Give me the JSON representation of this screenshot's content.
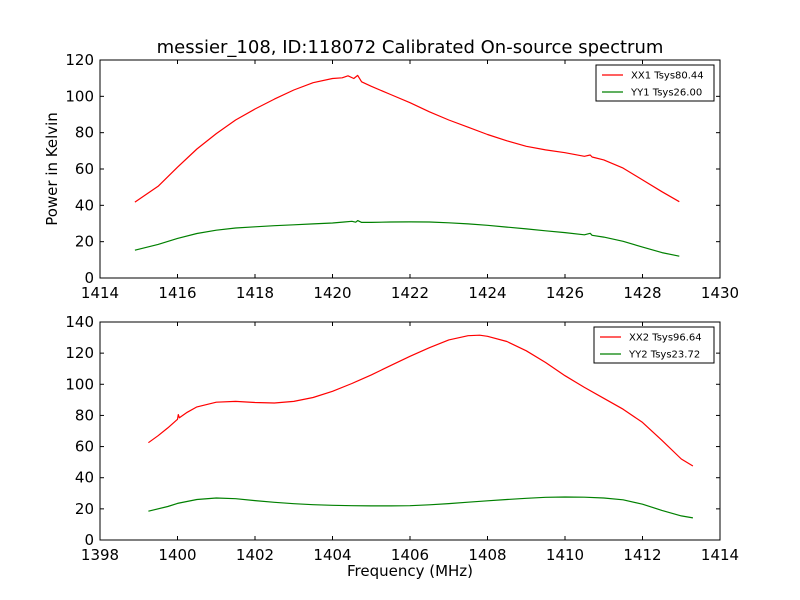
{
  "title": "messier_108, ID:118072 Calibrated On-source spectrum",
  "ylabel": "Power in Kelvin",
  "xlabel": "Frequency (MHz)",
  "colors": {
    "xx": "#ff0000",
    "yy": "#008000"
  },
  "chart_data": [
    {
      "type": "line",
      "xlim": [
        1414,
        1430
      ],
      "ylim": [
        0,
        120
      ],
      "xticks": [
        1414,
        1416,
        1418,
        1420,
        1422,
        1424,
        1426,
        1428,
        1430
      ],
      "yticks": [
        0,
        20,
        40,
        60,
        80,
        100,
        120
      ],
      "legend_position": "top-right",
      "series": [
        {
          "name": "XX1 Tsys80.44",
          "color": "#ff0000",
          "points": [
            [
              1414.9,
              41.8
            ],
            [
              1415.5,
              50.5
            ],
            [
              1416.0,
              61.0
            ],
            [
              1416.5,
              71.0
            ],
            [
              1417.0,
              79.5
            ],
            [
              1417.5,
              87.0
            ],
            [
              1418.0,
              93.0
            ],
            [
              1418.5,
              98.5
            ],
            [
              1419.0,
              103.5
            ],
            [
              1419.5,
              107.5
            ],
            [
              1420.0,
              109.8
            ],
            [
              1420.25,
              110.2
            ],
            [
              1420.4,
              111.3
            ],
            [
              1420.55,
              109.8
            ],
            [
              1420.65,
              111.5
            ],
            [
              1420.75,
              108.0
            ],
            [
              1421.0,
              105.5
            ],
            [
              1421.5,
              101.0
            ],
            [
              1422.0,
              96.5
            ],
            [
              1422.5,
              91.5
            ],
            [
              1423.0,
              87.0
            ],
            [
              1423.5,
              83.0
            ],
            [
              1424.0,
              79.0
            ],
            [
              1424.5,
              75.5
            ],
            [
              1425.0,
              72.5
            ],
            [
              1425.5,
              70.5
            ],
            [
              1426.0,
              69.0
            ],
            [
              1426.5,
              67.0
            ],
            [
              1426.65,
              67.7
            ],
            [
              1426.7,
              66.6
            ],
            [
              1427.0,
              65.0
            ],
            [
              1427.5,
              60.5
            ],
            [
              1428.0,
              54.0
            ],
            [
              1428.5,
              47.5
            ],
            [
              1428.95,
              42.0
            ]
          ]
        },
        {
          "name": "YY1 Tsys26.00",
          "color": "#008000",
          "points": [
            [
              1414.9,
              15.3
            ],
            [
              1415.5,
              18.5
            ],
            [
              1416.0,
              21.8
            ],
            [
              1416.5,
              24.5
            ],
            [
              1417.0,
              26.3
            ],
            [
              1417.5,
              27.5
            ],
            [
              1418.0,
              28.2
            ],
            [
              1418.5,
              28.8
            ],
            [
              1419.0,
              29.3
            ],
            [
              1419.5,
              29.8
            ],
            [
              1420.0,
              30.3
            ],
            [
              1420.3,
              30.8
            ],
            [
              1420.5,
              31.2
            ],
            [
              1420.6,
              30.7
            ],
            [
              1420.65,
              31.6
            ],
            [
              1420.75,
              30.6
            ],
            [
              1421.0,
              30.6
            ],
            [
              1421.5,
              30.8
            ],
            [
              1422.0,
              30.9
            ],
            [
              1422.5,
              30.8
            ],
            [
              1423.0,
              30.4
            ],
            [
              1423.5,
              29.8
            ],
            [
              1424.0,
              29.0
            ],
            [
              1424.5,
              28.0
            ],
            [
              1425.0,
              27.0
            ],
            [
              1425.5,
              26.0
            ],
            [
              1426.0,
              25.0
            ],
            [
              1426.5,
              23.8
            ],
            [
              1426.65,
              24.6
            ],
            [
              1426.7,
              23.5
            ],
            [
              1427.0,
              22.5
            ],
            [
              1427.5,
              20.2
            ],
            [
              1428.0,
              17.0
            ],
            [
              1428.5,
              14.0
            ],
            [
              1428.95,
              12.0
            ]
          ]
        }
      ]
    },
    {
      "type": "line",
      "xlim": [
        1398,
        1414
      ],
      "ylim": [
        0,
        140
      ],
      "xticks": [
        1398,
        1400,
        1402,
        1404,
        1406,
        1408,
        1410,
        1412,
        1414
      ],
      "yticks": [
        0,
        20,
        40,
        60,
        80,
        100,
        120,
        140
      ],
      "legend_position": "top-right",
      "series": [
        {
          "name": "XX2 Tsys96.64",
          "color": "#ff0000",
          "points": [
            [
              1399.25,
              62.5
            ],
            [
              1399.5,
              67.0
            ],
            [
              1399.75,
              72.0
            ],
            [
              1400.0,
              77.5
            ],
            [
              1400.02,
              80.5
            ],
            [
              1400.05,
              78.5
            ],
            [
              1400.25,
              82.0
            ],
            [
              1400.5,
              85.5
            ],
            [
              1401.0,
              88.5
            ],
            [
              1401.5,
              89.0
            ],
            [
              1402.0,
              88.3
            ],
            [
              1402.5,
              88.0
            ],
            [
              1403.0,
              89.0
            ],
            [
              1403.5,
              91.5
            ],
            [
              1404.0,
              95.5
            ],
            [
              1404.5,
              100.5
            ],
            [
              1405.0,
              106.0
            ],
            [
              1405.5,
              112.0
            ],
            [
              1406.0,
              118.0
            ],
            [
              1406.5,
              123.5
            ],
            [
              1407.0,
              128.5
            ],
            [
              1407.5,
              131.2
            ],
            [
              1407.8,
              131.5
            ],
            [
              1408.0,
              130.8
            ],
            [
              1408.5,
              127.5
            ],
            [
              1409.0,
              121.5
            ],
            [
              1409.5,
              114.0
            ],
            [
              1410.0,
              105.5
            ],
            [
              1410.5,
              98.0
            ],
            [
              1411.0,
              91.0
            ],
            [
              1411.5,
              84.0
            ],
            [
              1412.0,
              75.5
            ],
            [
              1412.5,
              64.0
            ],
            [
              1413.0,
              52.0
            ],
            [
              1413.3,
              47.5
            ]
          ]
        },
        {
          "name": "YY2 Tsys23.72",
          "color": "#008000",
          "points": [
            [
              1399.25,
              18.5
            ],
            [
              1399.75,
              21.5
            ],
            [
              1400.0,
              23.5
            ],
            [
              1400.5,
              26.0
            ],
            [
              1401.0,
              27.0
            ],
            [
              1401.5,
              26.5
            ],
            [
              1402.0,
              25.3
            ],
            [
              1402.5,
              24.2
            ],
            [
              1403.0,
              23.3
            ],
            [
              1403.5,
              22.7
            ],
            [
              1404.0,
              22.3
            ],
            [
              1404.5,
              22.0
            ],
            [
              1405.0,
              21.9
            ],
            [
              1405.5,
              21.9
            ],
            [
              1406.0,
              22.0
            ],
            [
              1406.5,
              22.6
            ],
            [
              1407.0,
              23.4
            ],
            [
              1407.5,
              24.3
            ],
            [
              1408.0,
              25.2
            ],
            [
              1408.5,
              26.0
            ],
            [
              1409.0,
              26.8
            ],
            [
              1409.5,
              27.4
            ],
            [
              1410.0,
              27.6
            ],
            [
              1410.5,
              27.5
            ],
            [
              1411.0,
              27.0
            ],
            [
              1411.5,
              25.8
            ],
            [
              1412.0,
              23.0
            ],
            [
              1412.5,
              19.0
            ],
            [
              1413.0,
              15.5
            ],
            [
              1413.3,
              14.2
            ]
          ]
        }
      ]
    }
  ]
}
